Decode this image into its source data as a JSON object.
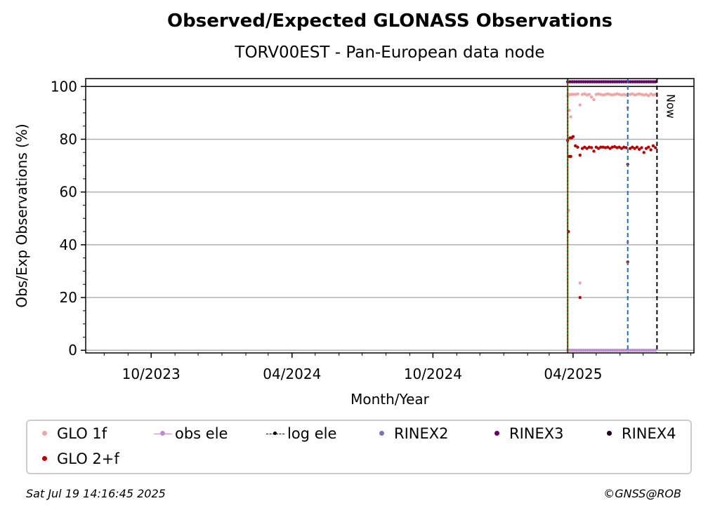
{
  "title": "Observed/Expected GLONASS Observations",
  "subtitle": "TORV00EST - Pan-European data node",
  "footer": {
    "timestamp": "Sat Jul 19 14:16:45 2025",
    "credit": "©GNSS@ROB"
  },
  "legend": [
    {
      "label": "GLO 1f",
      "color": "#f4a3a3",
      "kind": "dot"
    },
    {
      "label": "obs ele",
      "color": "#c08cd0",
      "kind": "line-dot"
    },
    {
      "label": "log ele",
      "color": "#000000",
      "kind": "dash-dot"
    },
    {
      "label": "RINEX2",
      "color": "#8070b8",
      "kind": "dot"
    },
    {
      "label": "RINEX3",
      "color": "#660066",
      "kind": "dot"
    },
    {
      "label": "RINEX4",
      "color": "#220022",
      "kind": "dot"
    },
    {
      "label": "GLO 2+f",
      "color": "#bb0000",
      "kind": "dot"
    }
  ],
  "chart_data": {
    "type": "scatter",
    "title": "Observed/Expected GLONASS Observations",
    "subtitle": "TORV00EST - Pan-European data node",
    "xlabel": "Month/Year",
    "ylabel": "Obs/Exp Observations (%)",
    "xlim": [
      "2023-07-08",
      "2025-09-05"
    ],
    "ylim": [
      -1,
      103
    ],
    "x_ticks": [
      {
        "date": "2023-10-01",
        "label": "10/2023"
      },
      {
        "date": "2024-04-01",
        "label": "04/2024"
      },
      {
        "date": "2024-10-01",
        "label": "10/2024"
      },
      {
        "date": "2025-04-01",
        "label": "04/2025"
      }
    ],
    "y_ticks": [
      0,
      20,
      40,
      60,
      80,
      100
    ],
    "grid": "horizontal",
    "vlines": [
      {
        "date": "2025-03-25",
        "color": "#008000",
        "style": "solid"
      },
      {
        "date": "2025-03-25",
        "color": "#cc0000",
        "style": "dotted"
      },
      {
        "date": "2025-06-11",
        "color": "#1f6fbf",
        "style": "dashed"
      },
      {
        "date": "2025-07-19",
        "color": "#000000",
        "style": "dashed",
        "label": "Now"
      }
    ],
    "hline": 100,
    "series": [
      {
        "name": "GLO 1f",
        "color": "#f4a3a3",
        "points": [
          [
            "2025-03-25",
            96.5
          ],
          [
            "2025-03-26",
            53
          ],
          [
            "2025-03-27",
            91
          ],
          [
            "2025-03-28",
            97
          ],
          [
            "2025-03-29",
            88.5
          ],
          [
            "2025-03-30",
            97
          ],
          [
            "2025-04-01",
            97
          ],
          [
            "2025-04-04",
            97
          ],
          [
            "2025-04-07",
            97.2
          ],
          [
            "2025-04-10",
            93
          ],
          [
            "2025-04-10",
            25.5
          ],
          [
            "2025-04-13",
            97
          ],
          [
            "2025-04-16",
            97.2
          ],
          [
            "2025-04-19",
            96.8
          ],
          [
            "2025-04-22",
            97
          ],
          [
            "2025-04-25",
            96
          ],
          [
            "2025-04-28",
            95
          ],
          [
            "2025-05-01",
            97
          ],
          [
            "2025-05-04",
            97.2
          ],
          [
            "2025-05-07",
            97
          ],
          [
            "2025-05-10",
            96.8
          ],
          [
            "2025-05-13",
            97
          ],
          [
            "2025-05-16",
            97.2
          ],
          [
            "2025-05-19",
            97
          ],
          [
            "2025-05-22",
            96.8
          ],
          [
            "2025-05-25",
            97
          ],
          [
            "2025-05-28",
            97.2
          ],
          [
            "2025-05-31",
            97
          ],
          [
            "2025-06-03",
            96.8
          ],
          [
            "2025-06-06",
            97
          ],
          [
            "2025-06-09",
            96.8
          ],
          [
            "2025-06-11",
            92
          ],
          [
            "2025-06-11",
            41
          ],
          [
            "2025-06-14",
            97
          ],
          [
            "2025-06-17",
            97.2
          ],
          [
            "2025-06-20",
            96.8
          ],
          [
            "2025-06-23",
            97
          ],
          [
            "2025-06-26",
            97.2
          ],
          [
            "2025-06-29",
            97
          ],
          [
            "2025-07-02",
            96.8
          ],
          [
            "2025-07-05",
            97
          ],
          [
            "2025-07-08",
            96.5
          ],
          [
            "2025-07-11",
            97.2
          ],
          [
            "2025-07-14",
            96.8
          ],
          [
            "2025-07-17",
            97
          ]
        ]
      },
      {
        "name": "GLO 2+f",
        "color": "#bb0000",
        "points": [
          [
            "2025-03-25",
            79.5
          ],
          [
            "2025-03-26",
            45
          ],
          [
            "2025-03-27",
            73.5
          ],
          [
            "2025-03-28",
            80.5
          ],
          [
            "2025-03-29",
            73.5
          ],
          [
            "2025-03-30",
            80.5
          ],
          [
            "2025-04-01",
            81
          ],
          [
            "2025-04-04",
            77.5
          ],
          [
            "2025-04-07",
            77
          ],
          [
            "2025-04-10",
            74
          ],
          [
            "2025-04-10",
            20
          ],
          [
            "2025-04-13",
            76.5
          ],
          [
            "2025-04-16",
            77
          ],
          [
            "2025-04-19",
            76.5
          ],
          [
            "2025-04-22",
            77
          ],
          [
            "2025-04-25",
            76.8
          ],
          [
            "2025-04-28",
            75.5
          ],
          [
            "2025-05-01",
            77
          ],
          [
            "2025-05-04",
            76.5
          ],
          [
            "2025-05-07",
            77
          ],
          [
            "2025-05-10",
            77
          ],
          [
            "2025-05-13",
            76.8
          ],
          [
            "2025-05-16",
            77
          ],
          [
            "2025-05-19",
            76.5
          ],
          [
            "2025-05-22",
            77
          ],
          [
            "2025-05-25",
            77.2
          ],
          [
            "2025-05-28",
            76.8
          ],
          [
            "2025-05-31",
            77
          ],
          [
            "2025-06-03",
            76.5
          ],
          [
            "2025-06-06",
            77
          ],
          [
            "2025-06-09",
            76.8
          ],
          [
            "2025-06-11",
            70.5
          ],
          [
            "2025-06-11",
            33.5
          ],
          [
            "2025-06-14",
            76.5
          ],
          [
            "2025-06-17",
            77
          ],
          [
            "2025-06-20",
            76.5
          ],
          [
            "2025-06-23",
            77
          ],
          [
            "2025-06-26",
            76.2
          ],
          [
            "2025-06-29",
            76.8
          ],
          [
            "2025-07-02",
            75
          ],
          [
            "2025-07-05",
            76.5
          ],
          [
            "2025-07-08",
            77
          ],
          [
            "2025-07-11",
            76
          ],
          [
            "2025-07-14",
            77.5
          ],
          [
            "2025-07-17",
            76.8
          ]
        ]
      },
      {
        "name": "RINEX3",
        "color": "#660066",
        "style": "band",
        "from": "2025-03-25",
        "to": "2025-07-19",
        "value": 101.8
      },
      {
        "name": "obs ele",
        "color": "#c08cd0",
        "style": "band",
        "from": "2025-03-25",
        "to": "2025-07-19",
        "value": 0
      }
    ]
  }
}
